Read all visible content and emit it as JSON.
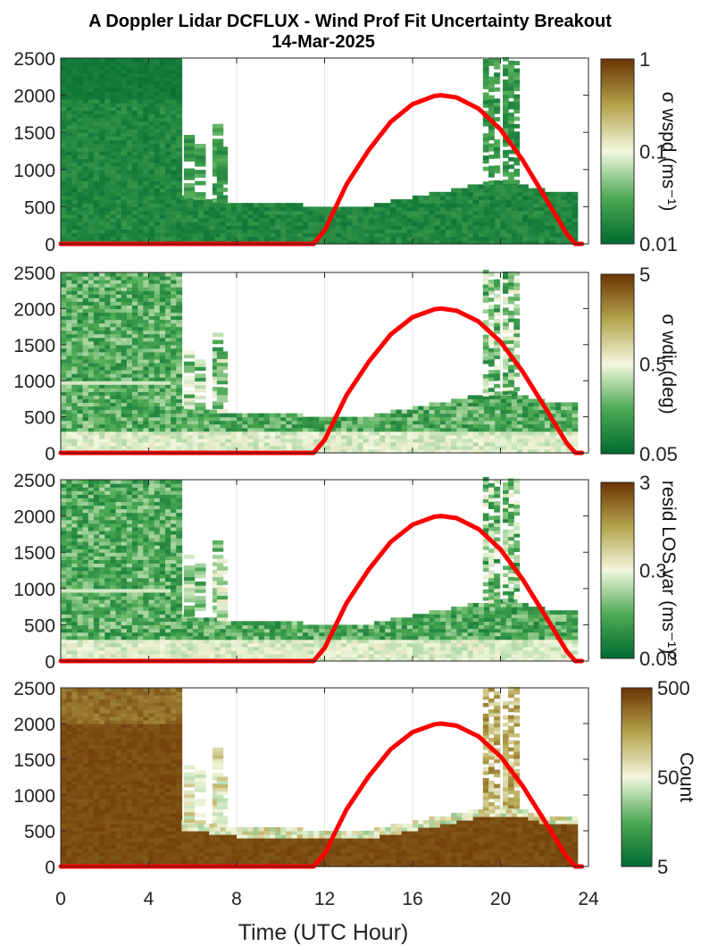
{
  "title": {
    "line1": "A Doppler Lidar DCFLUX - Wind Prof Fit Uncertainty Breakout",
    "line2": "14-Mar-2025"
  },
  "xaxis": {
    "label": "Time (UTC Hour)",
    "ticks": [
      "0",
      "4",
      "8",
      "12",
      "16",
      "20",
      "24"
    ],
    "range": [
      0,
      24
    ]
  },
  "colors": {
    "low": "#006a30",
    "mid": "#f2f7de",
    "high": "#6b3402",
    "sun_line": "#ff0000",
    "grid": "#e6e6e6"
  },
  "panels": [
    {
      "id": "wspd",
      "cb_label": "σ wspd (ms⁻¹)",
      "cb_ticks": [
        "1",
        "0.1",
        "0.01"
      ],
      "y_ticks": [
        "0",
        "500",
        "1000",
        "1500",
        "2000",
        "2500"
      ],
      "ylim": [
        0,
        2500
      ],
      "field_level": "low"
    },
    {
      "id": "wdir",
      "cb_label": "σ wdir (deg)",
      "cb_ticks": [
        "5",
        "0.5",
        "0.05"
      ],
      "y_ticks": [
        "0",
        "500",
        "1000",
        "1500",
        "2000",
        "2500"
      ],
      "ylim": [
        0,
        2500
      ],
      "field_level": "mixed"
    },
    {
      "id": "resid",
      "cb_label": "resid LOS var (ms⁻¹)²",
      "cb_ticks": [
        "3",
        "0.3",
        "0.03"
      ],
      "y_ticks": [
        "0",
        "500",
        "1000",
        "1500",
        "2000",
        "2500"
      ],
      "ylim": [
        0,
        2500
      ],
      "field_level": "mixed"
    },
    {
      "id": "count",
      "cb_label": "Count",
      "cb_ticks": [
        "500",
        "50",
        "5"
      ],
      "y_ticks": [
        "0",
        "500",
        "1000",
        "1500",
        "2000",
        "2500"
      ],
      "ylim": [
        0,
        2500
      ],
      "field_level": "high"
    }
  ],
  "chart_data": {
    "type": "heatmap",
    "x_range_hours": [
      0,
      24
    ],
    "y_range_m": [
      0,
      2500
    ],
    "data_extent_top_m": [
      [
        0,
        2500
      ],
      [
        5.4,
        2500
      ],
      [
        5.5,
        620
      ],
      [
        8,
        520
      ],
      [
        11,
        500
      ],
      [
        12,
        480
      ],
      [
        14,
        490
      ],
      [
        16,
        600
      ],
      [
        18,
        720
      ],
      [
        19.4,
        800
      ],
      [
        20.5,
        820
      ],
      [
        22,
        700
      ],
      [
        23.6,
        680
      ]
    ],
    "sun_elevation_line": {
      "x": [
        0,
        11.5,
        12,
        13,
        14,
        15,
        16,
        17,
        17.3,
        18,
        19,
        20,
        21,
        22,
        23,
        23.4,
        23.7
      ],
      "y": [
        0,
        0,
        180,
        800,
        1260,
        1640,
        1880,
        1990,
        2000,
        1970,
        1820,
        1540,
        1130,
        640,
        140,
        0,
        0
      ]
    }
  }
}
